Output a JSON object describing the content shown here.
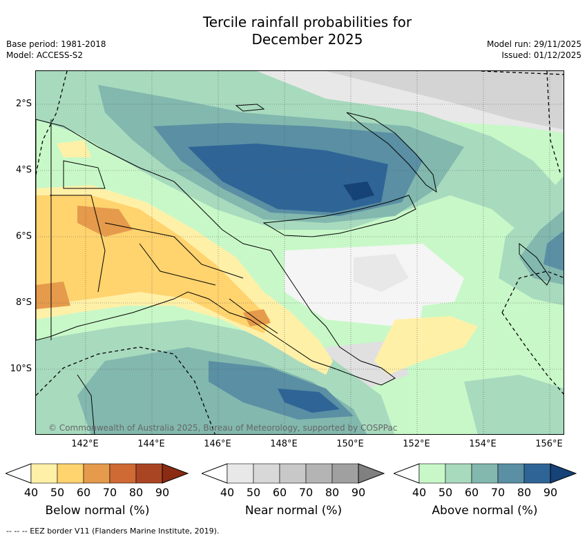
{
  "title_line1": "Tercile rainfall probabilities for",
  "title_line2": "December 2025",
  "base_period": "Base period: 1981-2018",
  "model": "Model: ACCESS-S2",
  "model_run": "Model run: 29/11/2025",
  "issued": "Issued: 01/12/2025",
  "lat_ticks": [
    "2°S",
    "4°S",
    "6°S",
    "8°S",
    "10°S"
  ],
  "lon_ticks": [
    "142°E",
    "144°E",
    "146°E",
    "148°E",
    "150°E",
    "152°E",
    "154°E",
    "156°E"
  ],
  "copyright": "© Commonwealth of Australia 2025, Bureau of Meteorology, supported by COSPPac",
  "footer": "-- -- -- EEZ border V11 (Flanders Marine Institute, 2019).",
  "colorbars": [
    {
      "title": "Below normal (%)",
      "labels": [
        "40",
        "50",
        "60",
        "70",
        "80",
        "90"
      ],
      "colors": [
        "#fff0a8",
        "#ffd36e",
        "#e59a4c",
        "#cf6a35",
        "#aa4524",
        "#8a2b12"
      ]
    },
    {
      "title": "Near normal (%)",
      "labels": [
        "40",
        "50",
        "60",
        "70",
        "80",
        "90"
      ],
      "colors": [
        "#e8e8e8",
        "#d8d8d8",
        "#c8c8c8",
        "#b4b4b4",
        "#a0a0a0",
        "#808080"
      ]
    },
    {
      "title": "Above normal (%)",
      "labels": [
        "40",
        "50",
        "60",
        "70",
        "80",
        "90"
      ],
      "colors": [
        "#c8f8c8",
        "#a8dabe",
        "#82b8ae",
        "#5a8fa4",
        "#2f6496",
        "#154277"
      ]
    }
  ]
}
